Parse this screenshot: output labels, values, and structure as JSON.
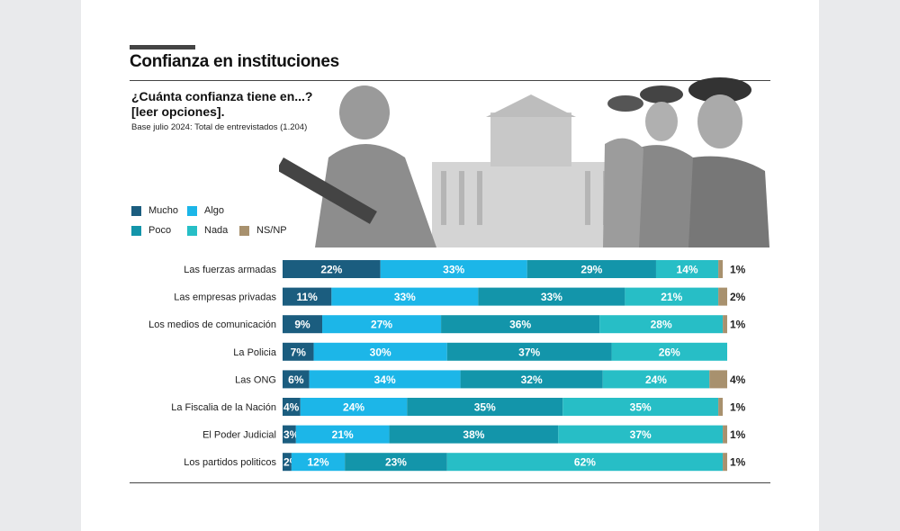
{
  "title": "Confianza en instituciones",
  "question_line1": "¿Cuánta confianza tiene en...?",
  "question_line2": "[leer opciones].",
  "base": "Base julio 2024: Total de entrevistados (1.204)",
  "chart_data": {
    "type": "bar",
    "stacked": true,
    "orientation": "horizontal",
    "legend_position": "top-left",
    "categories": [
      "Las fuerzas armadas",
      "Las empresas privadas",
      "Los medios de comunicación",
      "La Policia",
      "Las ONG",
      "La Fiscalia de la Nación",
      "El Poder Judicial",
      "Los partidos politicos"
    ],
    "series": [
      {
        "name": "Mucho",
        "color": "#1b5d7f",
        "values": [
          22,
          11,
          9,
          7,
          6,
          4,
          3,
          2
        ]
      },
      {
        "name": "Algo",
        "color": "#1cb6e8",
        "values": [
          33,
          33,
          27,
          30,
          34,
          24,
          21,
          12
        ]
      },
      {
        "name": "Poco",
        "color": "#1395aa",
        "values": [
          29,
          33,
          36,
          37,
          32,
          35,
          38,
          23
        ]
      },
      {
        "name": "Nada",
        "color": "#27bec6",
        "values": [
          14,
          21,
          28,
          26,
          24,
          35,
          37,
          62
        ]
      },
      {
        "name": "NS/NP",
        "color": "#a8916e",
        "values": [
          1,
          2,
          1,
          0,
          4,
          1,
          1,
          1
        ]
      }
    ],
    "value_suffix": "%"
  }
}
